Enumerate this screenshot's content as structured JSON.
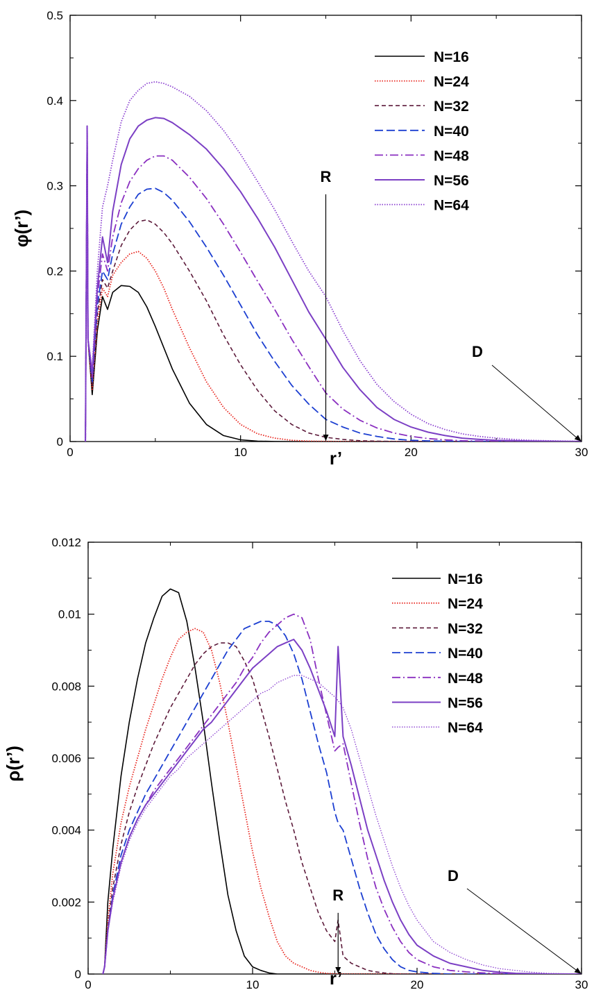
{
  "chart_data": [
    {
      "type": "line",
      "xlabel": "r’",
      "ylabel": "φ(r’)",
      "xlim": [
        0,
        30
      ],
      "ylim": [
        0,
        0.5
      ],
      "xticks": [
        "0",
        "10",
        "20",
        "30"
      ],
      "yticks": [
        "0",
        "0.1",
        "0.2",
        "0.3",
        "0.4",
        "0.5"
      ],
      "legend_position": "top-right",
      "annotations": [
        {
          "text": "R",
          "x": 15,
          "y_top": 0.29,
          "y_bottom": 0.0
        },
        {
          "text": "D",
          "x": 30,
          "y": 0.0
        }
      ],
      "x": [
        0.9,
        1.0,
        1.05,
        1.3,
        1.6,
        1.9,
        2.2,
        2.5,
        3,
        3.5,
        4,
        4.5,
        5,
        5.5,
        6,
        7,
        8,
        9,
        10,
        11,
        12,
        13,
        14,
        15,
        16,
        17,
        18,
        19,
        20,
        21,
        22,
        23,
        24,
        25,
        26,
        27,
        28,
        29,
        30
      ],
      "series": [
        {
          "name": "N=16",
          "color": "#000000",
          "dash": "",
          "width": 1.6,
          "values": [
            0,
            0.37,
            0.12,
            0.055,
            0.13,
            0.17,
            0.155,
            0.175,
            0.183,
            0.182,
            0.175,
            0.158,
            0.135,
            0.11,
            0.085,
            0.045,
            0.02,
            0.007,
            0.002,
            0.0005,
            0.0001,
            0,
            0,
            0,
            0,
            0,
            0,
            0,
            0,
            0,
            0,
            0,
            0,
            0,
            0,
            0,
            0,
            0,
            0
          ]
        },
        {
          "name": "N=24",
          "color": "#e8241d",
          "dash": "1.5,2",
          "width": 1.8,
          "values": [
            0,
            0.37,
            0.12,
            0.06,
            0.14,
            0.18,
            0.17,
            0.195,
            0.21,
            0.22,
            0.223,
            0.215,
            0.2,
            0.18,
            0.155,
            0.11,
            0.07,
            0.04,
            0.02,
            0.009,
            0.004,
            0.0015,
            0.0005,
            0.0002,
            0.0001,
            0,
            0,
            0,
            0,
            0,
            0,
            0,
            0,
            0,
            0,
            0,
            0,
            0,
            0
          ]
        },
        {
          "name": "N=32",
          "color": "#5c1a3a",
          "dash": "6,4",
          "width": 1.6,
          "values": [
            0,
            0.37,
            0.12,
            0.065,
            0.15,
            0.19,
            0.18,
            0.2,
            0.23,
            0.248,
            0.258,
            0.26,
            0.255,
            0.245,
            0.232,
            0.2,
            0.165,
            0.125,
            0.09,
            0.06,
            0.036,
            0.02,
            0.01,
            0.005,
            0.0025,
            0.001,
            0.0005,
            0.0002,
            0.0001,
            0,
            0,
            0,
            0,
            0,
            0,
            0,
            0,
            0,
            0
          ]
        },
        {
          "name": "N=40",
          "color": "#1c3fd1",
          "dash": "12,5",
          "width": 1.8,
          "values": [
            0,
            0.37,
            0.12,
            0.07,
            0.16,
            0.2,
            0.19,
            0.22,
            0.255,
            0.275,
            0.29,
            0.296,
            0.297,
            0.292,
            0.283,
            0.258,
            0.228,
            0.195,
            0.16,
            0.125,
            0.094,
            0.066,
            0.044,
            0.026,
            0.017,
            0.01,
            0.006,
            0.003,
            0.0015,
            0.0008,
            0.0004,
            0.0002,
            0.0001,
            0,
            0,
            0,
            0,
            0,
            0
          ]
        },
        {
          "name": "N=48",
          "color": "#8a2fc0",
          "dash": "12,4,2,4",
          "width": 1.8,
          "values": [
            0,
            0.37,
            0.12,
            0.075,
            0.17,
            0.22,
            0.2,
            0.24,
            0.28,
            0.305,
            0.32,
            0.33,
            0.335,
            0.335,
            0.33,
            0.31,
            0.285,
            0.255,
            0.222,
            0.188,
            0.155,
            0.12,
            0.088,
            0.057,
            0.038,
            0.025,
            0.016,
            0.01,
            0.006,
            0.0035,
            0.002,
            0.001,
            0.0006,
            0.0003,
            0.0002,
            0.0001,
            0,
            0,
            0
          ]
        },
        {
          "name": "N=56",
          "color": "#7b3fc4",
          "dash": "",
          "width": 2.0,
          "values": [
            0,
            0.37,
            0.12,
            0.08,
            0.18,
            0.24,
            0.21,
            0.27,
            0.325,
            0.355,
            0.37,
            0.377,
            0.38,
            0.379,
            0.374,
            0.36,
            0.343,
            0.32,
            0.293,
            0.262,
            0.228,
            0.19,
            0.152,
            0.12,
            0.087,
            0.061,
            0.04,
            0.026,
            0.017,
            0.011,
            0.007,
            0.004,
            0.0025,
            0.0015,
            0.001,
            0.0006,
            0.0004,
            0.0002,
            0.0001
          ]
        },
        {
          "name": "N=64",
          "color": "#8a3fd0",
          "dash": "1.5,2",
          "width": 1.8,
          "values": [
            0,
            0.37,
            0.12,
            0.085,
            0.2,
            0.275,
            0.3,
            0.33,
            0.375,
            0.4,
            0.412,
            0.42,
            0.422,
            0.42,
            0.416,
            0.405,
            0.388,
            0.365,
            0.337,
            0.305,
            0.272,
            0.235,
            0.2,
            0.17,
            0.13,
            0.095,
            0.067,
            0.047,
            0.032,
            0.021,
            0.014,
            0.009,
            0.006,
            0.004,
            0.0025,
            0.0015,
            0.001,
            0.0006,
            0.0003
          ]
        }
      ]
    },
    {
      "type": "line",
      "xlabel": "r’",
      "ylabel": "ρ(r’)",
      "xlim": [
        0,
        30
      ],
      "ylim": [
        0,
        0.012
      ],
      "xticks": [
        "0",
        "10",
        "20",
        "30"
      ],
      "yticks": [
        "0",
        "0.002",
        "0.004",
        "0.006",
        "0.008",
        "0.01",
        "0.012"
      ],
      "legend_position": "top-right",
      "annotations": [
        {
          "text": "R",
          "x": 15.2,
          "y_top": 0.0017,
          "y_bottom": 0.0
        },
        {
          "text": "D",
          "x": 30,
          "y": 0.0
        }
      ],
      "x": [
        0.9,
        1.0,
        1.2,
        1.5,
        2,
        2.5,
        3,
        3.5,
        4,
        4.5,
        5,
        5.5,
        6,
        6.5,
        7,
        7.5,
        8,
        8.5,
        9,
        9.5,
        10,
        10.5,
        11,
        11.5,
        12,
        12.5,
        13,
        13.5,
        14,
        14.5,
        15,
        15.2,
        15.5,
        16,
        16.5,
        17,
        17.5,
        18,
        18.5,
        19,
        19.5,
        20,
        21,
        22,
        23,
        24,
        25,
        26,
        27,
        28,
        29,
        30
      ],
      "series": [
        {
          "name": "N=16",
          "color": "#000000",
          "dash": "",
          "width": 1.6,
          "values": [
            0,
            0.0002,
            0.002,
            0.0035,
            0.0055,
            0.007,
            0.0082,
            0.0092,
            0.0099,
            0.0105,
            0.0107,
            0.0106,
            0.0098,
            0.0085,
            0.007,
            0.0053,
            0.0037,
            0.0022,
            0.0012,
            0.0005,
            0.0002,
            0.0001,
            3e-05,
            0,
            0,
            0,
            0,
            0,
            0,
            0,
            0,
            0,
            0,
            0,
            0,
            0,
            0,
            0,
            0,
            0,
            0,
            0,
            0,
            0,
            0,
            0,
            0,
            0,
            0,
            0,
            0,
            0
          ]
        },
        {
          "name": "N=24",
          "color": "#e8241d",
          "dash": "1.5,2",
          "width": 1.8,
          "values": [
            0,
            0.0002,
            0.0015,
            0.0028,
            0.0042,
            0.0052,
            0.006,
            0.0068,
            0.0075,
            0.0082,
            0.0088,
            0.0093,
            0.0095,
            0.0096,
            0.0095,
            0.009,
            0.0081,
            0.007,
            0.0058,
            0.0046,
            0.0034,
            0.0024,
            0.0016,
            0.0009,
            0.0005,
            0.0003,
            0.0002,
            0.0001,
            5e-05,
            2e-05,
            1e-05,
            0,
            0,
            0,
            0,
            0,
            0,
            0,
            0,
            0,
            0,
            0,
            0,
            0,
            0,
            0,
            0,
            0,
            0,
            0,
            0,
            0
          ]
        },
        {
          "name": "N=32",
          "color": "#5c1a3a",
          "dash": "6,4",
          "width": 1.6,
          "values": [
            0,
            0.0002,
            0.0013,
            0.0024,
            0.0036,
            0.0045,
            0.0052,
            0.0058,
            0.0064,
            0.0069,
            0.0074,
            0.0078,
            0.0082,
            0.0086,
            0.0089,
            0.0091,
            0.0092,
            0.0092,
            0.0091,
            0.0087,
            0.0082,
            0.0074,
            0.0066,
            0.0057,
            0.0048,
            0.004,
            0.0031,
            0.0024,
            0.0017,
            0.0012,
            0.0009,
            0.0015,
            0.0005,
            0.0003,
            0.0002,
            0.0001,
            6e-05,
            3e-05,
            1e-05,
            0,
            0,
            0,
            0,
            0,
            0,
            0,
            0,
            0,
            0,
            0,
            0,
            0
          ]
        },
        {
          "name": "N=40",
          "color": "#1c3fd1",
          "dash": "12,5",
          "width": 1.8,
          "values": [
            0,
            0.0002,
            0.0012,
            0.0022,
            0.0033,
            0.004,
            0.0045,
            0.005,
            0.0054,
            0.0058,
            0.0062,
            0.0066,
            0.007,
            0.0074,
            0.0078,
            0.0082,
            0.0086,
            0.009,
            0.0093,
            0.0096,
            0.0097,
            0.0098,
            0.0098,
            0.0097,
            0.0094,
            0.0089,
            0.0082,
            0.0073,
            0.0064,
            0.0056,
            0.0045,
            0.0042,
            0.004,
            0.0032,
            0.0024,
            0.0017,
            0.0011,
            0.0007,
            0.0004,
            0.0002,
            0.0001,
            6e-05,
            2e-05,
            0,
            0,
            0,
            0,
            0,
            0,
            0,
            0,
            0
          ]
        },
        {
          "name": "N=48",
          "color": "#8a2fc0",
          "dash": "12,4,2,4",
          "width": 1.8,
          "values": [
            0,
            0.0002,
            0.0012,
            0.0021,
            0.0031,
            0.0038,
            0.0043,
            0.0047,
            0.0051,
            0.0054,
            0.0057,
            0.006,
            0.0063,
            0.0066,
            0.0069,
            0.0072,
            0.0075,
            0.0078,
            0.0081,
            0.0085,
            0.0088,
            0.0092,
            0.0095,
            0.0097,
            0.0099,
            0.01,
            0.0099,
            0.0093,
            0.0082,
            0.0072,
            0.0062,
            0.0063,
            0.0064,
            0.0053,
            0.0042,
            0.0032,
            0.0024,
            0.0018,
            0.0013,
            0.0009,
            0.0006,
            0.0004,
            0.0002,
            0.0001,
            6e-05,
            3e-05,
            1e-05,
            0,
            0,
            0,
            0,
            0
          ]
        },
        {
          "name": "N=56",
          "color": "#7b3fc4",
          "dash": "",
          "width": 2.0,
          "values": [
            0,
            0.0002,
            0.0012,
            0.0021,
            0.0031,
            0.0038,
            0.0043,
            0.0047,
            0.005,
            0.0053,
            0.0056,
            0.0059,
            0.0062,
            0.0065,
            0.0068,
            0.007,
            0.0073,
            0.0076,
            0.0079,
            0.0082,
            0.0085,
            0.0087,
            0.0089,
            0.0091,
            0.0092,
            0.0093,
            0.009,
            0.0085,
            0.0079,
            0.0073,
            0.0066,
            0.0091,
            0.0066,
            0.0058,
            0.0049,
            0.004,
            0.0033,
            0.0026,
            0.002,
            0.0015,
            0.0011,
            0.0008,
            0.0005,
            0.0003,
            0.0002,
            0.0001,
            5e-05,
            2e-05,
            1e-05,
            0,
            0,
            0
          ]
        },
        {
          "name": "N=64",
          "color": "#8a3fd0",
          "dash": "1.5,2",
          "width": 1.3,
          "values": [
            0,
            0.0002,
            0.0012,
            0.002,
            0.003,
            0.0037,
            0.0042,
            0.0046,
            0.0049,
            0.0052,
            0.0055,
            0.0057,
            0.006,
            0.0062,
            0.0064,
            0.0066,
            0.0068,
            0.007,
            0.0072,
            0.0074,
            0.0076,
            0.0078,
            0.0079,
            0.0081,
            0.0082,
            0.0083,
            0.0083,
            0.0082,
            0.0081,
            0.0079,
            0.0077,
            0.0076,
            0.0074,
            0.0068,
            0.006,
            0.0052,
            0.0044,
            0.0037,
            0.003,
            0.0024,
            0.0019,
            0.0015,
            0.0009,
            0.0006,
            0.0004,
            0.00025,
            0.00015,
            0.0001,
            5e-05,
            2e-05,
            1e-05,
            0
          ]
        }
      ]
    }
  ]
}
